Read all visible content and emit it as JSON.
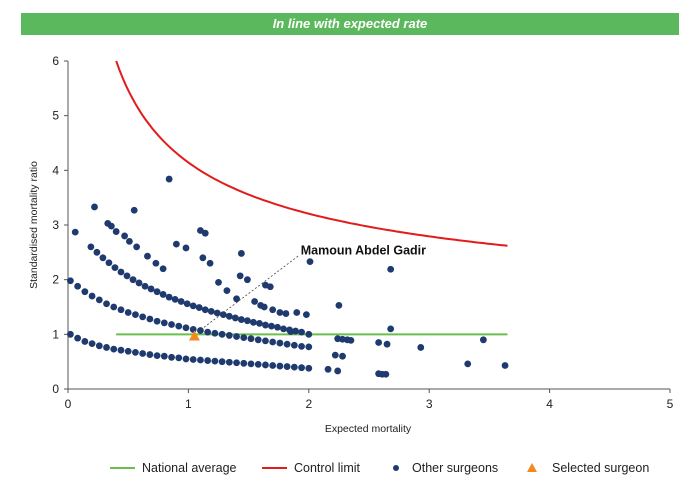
{
  "banner": {
    "title": "In line with expected rate"
  },
  "colors": {
    "banner": "#5cb85c",
    "national": "#6abf4b",
    "control": "#e21b1b",
    "others": "#1f3a6e",
    "selected": "#f28a1d"
  },
  "chart_data": {
    "type": "scatter",
    "xlabel": "Expected mortality",
    "ylabel": "Standardised mortality ratio",
    "xlim": [
      0,
      5
    ],
    "ylim": [
      0,
      6
    ],
    "x_ticks": [
      "0",
      "1",
      "2",
      "3",
      "4",
      "5"
    ],
    "y_ticks": [
      "0",
      "1",
      "2",
      "3",
      "4",
      "5",
      "6"
    ],
    "national_average": {
      "name": "National average",
      "y": 1,
      "x_range": [
        0.4,
        3.65
      ]
    },
    "control_limit": {
      "name": "Control limit",
      "x_range": [
        0.4,
        3.65
      ],
      "y_at_0_4": 6.0,
      "y_at_3_65": 2.62
    },
    "annotation": {
      "text": "Mamoun Abdel Gadir",
      "x": 1.95,
      "y": 2.55
    },
    "selected_surgeon": {
      "name": "Selected surgeon",
      "x": 1.05,
      "y": 0.96
    },
    "other_surgeons_name": "Other surgeons",
    "other_surgeons": [
      [
        0.02,
        1.0
      ],
      [
        0.08,
        0.93
      ],
      [
        0.14,
        0.87
      ],
      [
        0.2,
        0.83
      ],
      [
        0.26,
        0.79
      ],
      [
        0.32,
        0.76
      ],
      [
        0.38,
        0.73
      ],
      [
        0.44,
        0.71
      ],
      [
        0.5,
        0.69
      ],
      [
        0.56,
        0.67
      ],
      [
        0.62,
        0.65
      ],
      [
        0.68,
        0.63
      ],
      [
        0.74,
        0.61
      ],
      [
        0.8,
        0.6
      ],
      [
        0.86,
        0.58
      ],
      [
        0.92,
        0.57
      ],
      [
        0.98,
        0.55
      ],
      [
        1.04,
        0.54
      ],
      [
        1.1,
        0.53
      ],
      [
        1.16,
        0.52
      ],
      [
        1.22,
        0.51
      ],
      [
        1.28,
        0.5
      ],
      [
        1.34,
        0.49
      ],
      [
        1.4,
        0.48
      ],
      [
        1.46,
        0.47
      ],
      [
        1.52,
        0.46
      ],
      [
        1.58,
        0.45
      ],
      [
        1.64,
        0.44
      ],
      [
        1.7,
        0.43
      ],
      [
        1.76,
        0.42
      ],
      [
        1.82,
        0.41
      ],
      [
        1.88,
        0.4
      ],
      [
        1.94,
        0.39
      ],
      [
        2.0,
        0.38
      ],
      [
        2.16,
        0.36
      ],
      [
        2.24,
        0.33
      ],
      [
        2.58,
        0.28
      ],
      [
        2.61,
        0.27
      ],
      [
        2.64,
        0.27
      ],
      [
        0.02,
        1.98
      ],
      [
        0.08,
        1.88
      ],
      [
        0.14,
        1.78
      ],
      [
        0.2,
        1.7
      ],
      [
        0.26,
        1.63
      ],
      [
        0.32,
        1.56
      ],
      [
        0.38,
        1.5
      ],
      [
        0.44,
        1.45
      ],
      [
        0.5,
        1.4
      ],
      [
        0.56,
        1.36
      ],
      [
        0.62,
        1.32
      ],
      [
        0.68,
        1.28
      ],
      [
        0.74,
        1.24
      ],
      [
        0.8,
        1.21
      ],
      [
        0.86,
        1.18
      ],
      [
        0.92,
        1.15
      ],
      [
        0.98,
        1.12
      ],
      [
        1.04,
        1.09
      ],
      [
        1.1,
        1.07
      ],
      [
        1.16,
        1.04
      ],
      [
        1.22,
        1.02
      ],
      [
        1.28,
        1.0
      ],
      [
        1.34,
        0.98
      ],
      [
        1.4,
        0.96
      ],
      [
        1.46,
        0.94
      ],
      [
        1.52,
        0.92
      ],
      [
        1.58,
        0.9
      ],
      [
        1.64,
        0.88
      ],
      [
        1.7,
        0.86
      ],
      [
        1.76,
        0.84
      ],
      [
        1.82,
        0.82
      ],
      [
        1.88,
        0.8
      ],
      [
        1.94,
        0.78
      ],
      [
        2.0,
        0.77
      ],
      [
        2.22,
        0.62
      ],
      [
        2.28,
        0.6
      ],
      [
        2.58,
        0.85
      ],
      [
        2.65,
        0.82
      ],
      [
        2.93,
        0.76
      ],
      [
        3.32,
        0.46
      ],
      [
        3.45,
        0.9
      ],
      [
        3.63,
        0.43
      ],
      [
        0.19,
        2.6
      ],
      [
        0.24,
        2.5
      ],
      [
        0.29,
        2.4
      ],
      [
        0.34,
        2.31
      ],
      [
        0.39,
        2.22
      ],
      [
        0.44,
        2.14
      ],
      [
        0.49,
        2.07
      ],
      [
        0.54,
        2.0
      ],
      [
        0.59,
        1.94
      ],
      [
        0.64,
        1.88
      ],
      [
        0.69,
        1.83
      ],
      [
        0.74,
        1.78
      ],
      [
        0.79,
        1.73
      ],
      [
        0.84,
        1.68
      ],
      [
        0.89,
        1.64
      ],
      [
        0.94,
        1.6
      ],
      [
        0.99,
        1.56
      ],
      [
        1.04,
        1.52
      ],
      [
        1.09,
        1.49
      ],
      [
        1.14,
        1.45
      ],
      [
        1.19,
        1.42
      ],
      [
        1.24,
        1.39
      ],
      [
        1.29,
        1.36
      ],
      [
        1.34,
        1.33
      ],
      [
        1.39,
        1.3
      ],
      [
        1.44,
        1.27
      ],
      [
        1.49,
        1.25
      ],
      [
        1.54,
        1.22
      ],
      [
        1.59,
        1.2
      ],
      [
        1.64,
        1.17
      ],
      [
        1.69,
        1.15
      ],
      [
        1.74,
        1.13
      ],
      [
        1.79,
        1.1
      ],
      [
        1.84,
        1.08
      ],
      [
        1.89,
        1.06
      ],
      [
        1.94,
        1.04
      ],
      [
        2.0,
        1.0
      ],
      [
        2.24,
        0.92
      ],
      [
        2.28,
        0.91
      ],
      [
        2.32,
        0.9
      ],
      [
        2.35,
        0.89
      ],
      [
        2.68,
        1.1
      ],
      [
        0.06,
        2.87
      ],
      [
        0.22,
        3.33
      ],
      [
        0.33,
        3.03
      ],
      [
        0.36,
        2.98
      ],
      [
        0.4,
        2.88
      ],
      [
        0.47,
        2.8
      ],
      [
        0.51,
        2.7
      ],
      [
        0.55,
        3.27
      ],
      [
        0.57,
        2.6
      ],
      [
        0.66,
        2.43
      ],
      [
        0.73,
        2.3
      ],
      [
        0.79,
        2.2
      ],
      [
        0.84,
        3.84
      ],
      [
        0.9,
        2.65
      ],
      [
        0.98,
        2.58
      ],
      [
        1.1,
        2.9
      ],
      [
        1.14,
        2.85
      ],
      [
        1.12,
        2.4
      ],
      [
        1.18,
        2.3
      ],
      [
        1.25,
        1.95
      ],
      [
        1.32,
        1.8
      ],
      [
        1.4,
        1.65
      ],
      [
        1.43,
        2.07
      ],
      [
        1.44,
        2.48
      ],
      [
        1.49,
        2.0
      ],
      [
        1.55,
        1.6
      ],
      [
        1.6,
        1.53
      ],
      [
        1.64,
        1.9
      ],
      [
        1.68,
        1.87
      ],
      [
        1.63,
        1.5
      ],
      [
        1.7,
        1.45
      ],
      [
        1.76,
        1.4
      ],
      [
        1.81,
        1.38
      ],
      [
        1.85,
        1.05
      ],
      [
        1.9,
        1.4
      ],
      [
        1.98,
        1.36
      ],
      [
        2.01,
        2.33
      ],
      [
        2.25,
        1.53
      ],
      [
        2.68,
        2.19
      ]
    ]
  },
  "legend": [
    {
      "label": "National average",
      "marker": "line",
      "color": "#6abf4b"
    },
    {
      "label": "Control limit",
      "marker": "line",
      "color": "#e21b1b"
    },
    {
      "label": "Other surgeons",
      "marker": "dot",
      "color": "#1f3a6e"
    },
    {
      "label": "Selected surgeon",
      "marker": "triangle",
      "color": "#f28a1d"
    }
  ]
}
